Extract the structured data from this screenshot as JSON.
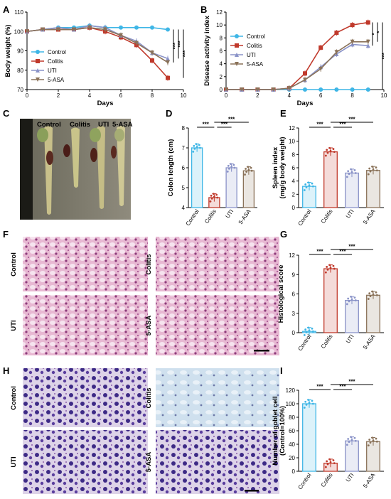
{
  "panels": {
    "A": {
      "letter": "A"
    },
    "B": {
      "letter": "B"
    },
    "C": {
      "letter": "C"
    },
    "D": {
      "letter": "D"
    },
    "E": {
      "letter": "E"
    },
    "F": {
      "letter": "F"
    },
    "G": {
      "letter": "G"
    },
    "H": {
      "letter": "H"
    },
    "I": {
      "letter": "I"
    }
  },
  "groups": [
    "Control",
    "Colitis",
    "UTI",
    "5-ASA"
  ],
  "colors": {
    "Control": "#3fb6e6",
    "Colitis": "#c0392b",
    "UTI": "#8a93c8",
    "5-ASA": "#8a7259"
  },
  "photo_C": {
    "labels": [
      "Control",
      "Colitis",
      "UTI",
      "5-ASA"
    ]
  },
  "histology_F": {
    "labels": [
      "Control",
      "Colitis",
      "UTI",
      "5-ASA"
    ]
  },
  "histology_H": {
    "labels": [
      "Control",
      "Colitis",
      "UTI",
      "5-ASA"
    ]
  },
  "chart_data": [
    {
      "id": "A",
      "type": "line",
      "xlabel": "Days",
      "ylabel": "Body weight (%)",
      "xlim": [
        0,
        10
      ],
      "ylim": [
        70,
        110
      ],
      "xticks": [
        0,
        2,
        4,
        6,
        8,
        10
      ],
      "yticks": [
        70,
        80,
        90,
        100,
        110
      ],
      "legend_position": "bottom-left",
      "x": [
        0,
        1,
        2,
        3,
        4,
        5,
        6,
        7,
        8,
        9
      ],
      "series": [
        {
          "name": "Control",
          "values": [
            100,
            101,
            102,
            102,
            103,
            102,
            102,
            102,
            102,
            101
          ]
        },
        {
          "name": "Colitis",
          "values": [
            100,
            101,
            101,
            101,
            102,
            100,
            97,
            93,
            85,
            76
          ]
        },
        {
          "name": "UTI",
          "values": [
            100,
            101,
            102,
            101,
            103,
            102,
            98,
            95,
            89,
            86
          ]
        },
        {
          "name": "5-ASA",
          "values": [
            100,
            101,
            101,
            101,
            102,
            101,
            98,
            94,
            89,
            84
          ]
        }
      ],
      "significance": [
        "***",
        "***",
        "***"
      ]
    },
    {
      "id": "B",
      "type": "line",
      "xlabel": "Days",
      "ylabel": "Disease activity index",
      "xlim": [
        0,
        10
      ],
      "ylim": [
        0,
        12
      ],
      "xticks": [
        0,
        2,
        4,
        6,
        8,
        10
      ],
      "yticks": [
        0,
        2,
        4,
        6,
        8,
        10,
        12
      ],
      "legend_position": "top-left",
      "x": [
        0,
        1,
        2,
        3,
        4,
        5,
        6,
        7,
        8,
        9
      ],
      "series": [
        {
          "name": "Control",
          "values": [
            0,
            0,
            0,
            0,
            0,
            0,
            0,
            0,
            0,
            0
          ]
        },
        {
          "name": "Colitis",
          "values": [
            0,
            0,
            0,
            0,
            0.2,
            2.5,
            6.5,
            8.8,
            10,
            10.4
          ]
        },
        {
          "name": "UTI",
          "values": [
            0,
            0,
            0,
            0,
            0.2,
            1.5,
            3.5,
            5.5,
            7,
            6.8
          ]
        },
        {
          "name": "5-ASA",
          "values": [
            0,
            0,
            0,
            0,
            0.2,
            1.5,
            3.2,
            5.8,
            7.4,
            7.4
          ]
        }
      ],
      "significance": [
        "*",
        "*",
        "***"
      ]
    },
    {
      "id": "D",
      "type": "bar",
      "ylabel": "Colon length (cm)",
      "ylim": [
        4,
        8
      ],
      "yticks": [
        4,
        5,
        6,
        7,
        8
      ],
      "categories": [
        "Control",
        "Colitis",
        "UTI",
        "5-ASA"
      ],
      "values": [
        7.0,
        4.5,
        6.0,
        5.85
      ],
      "significance": [
        "***",
        "***",
        "***"
      ]
    },
    {
      "id": "E",
      "type": "bar",
      "ylabel": "Spleen index (mg/g body weight)",
      "ylim": [
        0,
        12
      ],
      "yticks": [
        0,
        2,
        4,
        6,
        8,
        10,
        12
      ],
      "categories": [
        "Control",
        "Colitis",
        "UTI",
        "5-ASA"
      ],
      "values": [
        3.2,
        8.4,
        5.2,
        5.6
      ],
      "significance": [
        "***",
        "***",
        "***"
      ]
    },
    {
      "id": "G",
      "type": "bar",
      "ylabel": "Histological score",
      "ylim": [
        0,
        12
      ],
      "yticks": [
        0,
        3,
        6,
        9,
        12
      ],
      "categories": [
        "Control",
        "Colitis",
        "UTI",
        "5-ASA"
      ],
      "values": [
        0.2,
        9.9,
        5.0,
        5.8
      ],
      "significance": [
        "***",
        "***",
        "***"
      ]
    },
    {
      "id": "I",
      "type": "bar",
      "ylabel": "Number of goblet cell (Control=100%)",
      "ylim": [
        0,
        120
      ],
      "yticks": [
        0,
        20,
        40,
        60,
        80,
        100,
        120
      ],
      "categories": [
        "Control",
        "Colitis",
        "UTI",
        "5-ASA"
      ],
      "values": [
        100,
        12,
        45,
        44
      ],
      "significance": [
        "***",
        "***",
        "***"
      ]
    }
  ]
}
